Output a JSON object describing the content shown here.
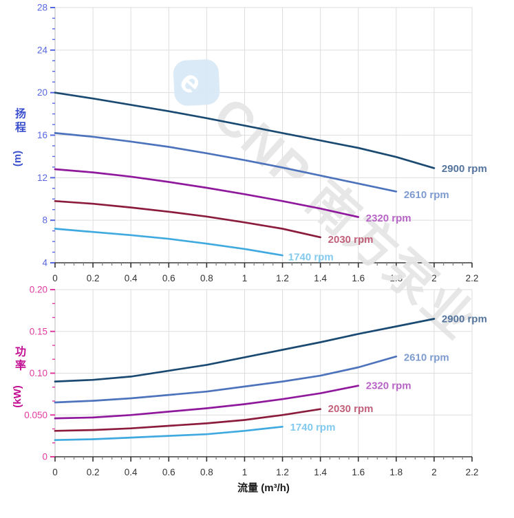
{
  "watermark": {
    "logo_letter": "e",
    "text": "CNP 南方泵业",
    "logo_color": "#D9E9F6",
    "text_color": "#E6E6E6"
  },
  "x_axis": {
    "title": "流量 (m³/h)",
    "min": 0,
    "max": 2.2,
    "major_step": 0.2,
    "minors_per_major": 3,
    "tick_labels": [
      "0",
      "0.2",
      "0.4",
      "0.6",
      "0.8",
      "1",
      "1.2",
      "1.4",
      "1.6",
      "1.8",
      "2",
      "2.2"
    ],
    "tick_label_color": "#333333",
    "title_color": "#1a1a1a"
  },
  "chart_data": [
    {
      "type": "line",
      "name": "head-curve",
      "title": "",
      "ylabel_chars": "扬程",
      "ylabel_unit": "(m)",
      "xlabel": "流量 (m³/h)",
      "ylim": [
        4,
        28
      ],
      "y_major_step": 4,
      "y_minors_per_major": 3,
      "y_tick_labels": [
        "4",
        "8",
        "12",
        "16",
        "20",
        "24",
        "28"
      ],
      "axis_title_color": "#3A50CE",
      "tick_color": "#5666E2",
      "grid": true,
      "legend_position": "end-of-line-labels",
      "series": [
        {
          "name": "2900 rpm",
          "color": "#1A4971",
          "label_color": "#54749E",
          "label_pos": [
            2.04,
            12.85
          ],
          "points": [
            [
              0,
              20.0
            ],
            [
              0.2,
              19.45
            ],
            [
              0.4,
              18.85
            ],
            [
              0.6,
              18.25
            ],
            [
              0.8,
              17.6
            ],
            [
              1.0,
              16.9
            ],
            [
              1.2,
              16.2
            ],
            [
              1.4,
              15.5
            ],
            [
              1.6,
              14.8
            ],
            [
              1.8,
              13.95
            ],
            [
              2.0,
              12.9
            ]
          ]
        },
        {
          "name": "2610 rpm",
          "color": "#4C73BC",
          "label_color": "#7E9BD0",
          "label_pos": [
            1.84,
            10.4
          ],
          "points": [
            [
              0,
              16.2
            ],
            [
              0.2,
              15.85
            ],
            [
              0.4,
              15.4
            ],
            [
              0.6,
              14.9
            ],
            [
              0.8,
              14.3
            ],
            [
              1.0,
              13.65
            ],
            [
              1.2,
              12.95
            ],
            [
              1.4,
              12.2
            ],
            [
              1.6,
              11.45
            ],
            [
              1.8,
              10.7
            ]
          ]
        },
        {
          "name": "2320 rpm",
          "color": "#8F189C",
          "label_color": "#B863C6",
          "label_pos": [
            1.64,
            8.2
          ],
          "points": [
            [
              0,
              12.8
            ],
            [
              0.2,
              12.5
            ],
            [
              0.4,
              12.1
            ],
            [
              0.6,
              11.6
            ],
            [
              0.8,
              11.05
            ],
            [
              1.0,
              10.45
            ],
            [
              1.2,
              9.8
            ],
            [
              1.4,
              9.1
            ],
            [
              1.6,
              8.3
            ]
          ]
        },
        {
          "name": "2030 rpm",
          "color": "#8C1C3E",
          "label_color": "#C2607B",
          "label_pos": [
            1.44,
            6.2
          ],
          "points": [
            [
              0,
              9.8
            ],
            [
              0.2,
              9.55
            ],
            [
              0.4,
              9.2
            ],
            [
              0.6,
              8.8
            ],
            [
              0.8,
              8.35
            ],
            [
              1.0,
              7.8
            ],
            [
              1.2,
              7.2
            ],
            [
              1.4,
              6.4
            ]
          ]
        },
        {
          "name": "1740 rpm",
          "color": "#3FA9E0",
          "label_color": "#82CAEF",
          "label_pos": [
            1.23,
            4.55
          ],
          "points": [
            [
              0,
              7.2
            ],
            [
              0.2,
              6.9
            ],
            [
              0.4,
              6.6
            ],
            [
              0.6,
              6.25
            ],
            [
              0.8,
              5.8
            ],
            [
              1.0,
              5.3
            ],
            [
              1.2,
              4.7
            ]
          ]
        }
      ]
    },
    {
      "type": "line",
      "name": "power-curve",
      "title": "",
      "ylabel_chars": "功率",
      "ylabel_unit": "(kW)",
      "xlabel": "流量 (m³/h)",
      "ylim": [
        0,
        0.2
      ],
      "y_major_step": 0.05,
      "y_minors_per_major": 2,
      "y_tick_labels": [
        "0",
        "0.050",
        "0.10",
        "0.15",
        "0.20"
      ],
      "axis_title_color": "#C20D92",
      "tick_color": "#E3399F",
      "grid": true,
      "legend_position": "end-of-line-labels",
      "series": [
        {
          "name": "2900 rpm",
          "color": "#1A4971",
          "label_color": "#54749E",
          "label_pos": [
            2.04,
            0.165
          ],
          "points": [
            [
              0,
              0.09
            ],
            [
              0.2,
              0.092
            ],
            [
              0.4,
              0.096
            ],
            [
              0.6,
              0.103
            ],
            [
              0.8,
              0.11
            ],
            [
              1.0,
              0.119
            ],
            [
              1.2,
              0.128
            ],
            [
              1.4,
              0.137
            ],
            [
              1.6,
              0.147
            ],
            [
              1.8,
              0.156
            ],
            [
              2.0,
              0.165
            ]
          ]
        },
        {
          "name": "2610 rpm",
          "color": "#4C73BC",
          "label_color": "#7E9BD0",
          "label_pos": [
            1.84,
            0.119
          ],
          "points": [
            [
              0,
              0.065
            ],
            [
              0.2,
              0.067
            ],
            [
              0.4,
              0.07
            ],
            [
              0.6,
              0.074
            ],
            [
              0.8,
              0.078
            ],
            [
              1.0,
              0.084
            ],
            [
              1.2,
              0.09
            ],
            [
              1.4,
              0.097
            ],
            [
              1.6,
              0.107
            ],
            [
              1.8,
              0.12
            ]
          ]
        },
        {
          "name": "2320 rpm",
          "color": "#8F189C",
          "label_color": "#B863C6",
          "label_pos": [
            1.64,
            0.085
          ],
          "points": [
            [
              0,
              0.046
            ],
            [
              0.2,
              0.047
            ],
            [
              0.4,
              0.05
            ],
            [
              0.6,
              0.054
            ],
            [
              0.8,
              0.058
            ],
            [
              1.0,
              0.063
            ],
            [
              1.2,
              0.069
            ],
            [
              1.4,
              0.076
            ],
            [
              1.6,
              0.085
            ]
          ]
        },
        {
          "name": "2030 rpm",
          "color": "#8C1C3E",
          "label_color": "#C2607B",
          "label_pos": [
            1.44,
            0.0575
          ],
          "points": [
            [
              0,
              0.031
            ],
            [
              0.2,
              0.032
            ],
            [
              0.4,
              0.034
            ],
            [
              0.6,
              0.037
            ],
            [
              0.8,
              0.04
            ],
            [
              1.0,
              0.044
            ],
            [
              1.2,
              0.05
            ],
            [
              1.4,
              0.057
            ]
          ]
        },
        {
          "name": "1740 rpm",
          "color": "#3FA9E0",
          "label_color": "#82CAEF",
          "label_pos": [
            1.24,
            0.0355
          ],
          "points": [
            [
              0,
              0.02
            ],
            [
              0.2,
              0.021
            ],
            [
              0.4,
              0.023
            ],
            [
              0.6,
              0.025
            ],
            [
              0.8,
              0.027
            ],
            [
              1.0,
              0.031
            ],
            [
              1.2,
              0.036
            ]
          ]
        }
      ]
    }
  ],
  "style": {
    "grid_color": "#DDDDDD",
    "left_axis_color": "#C4C4CC",
    "bottom_axis_color": "#3a3a3a",
    "minor_x_tick_color": "#7a7a7a"
  }
}
